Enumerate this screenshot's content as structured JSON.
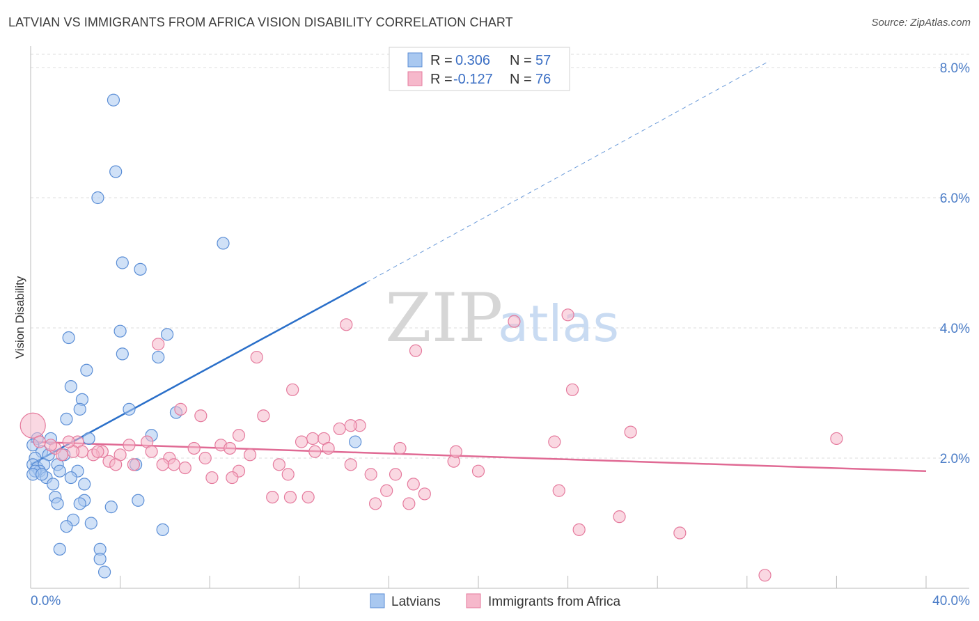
{
  "title": "LATVIAN VS IMMIGRANTS FROM AFRICA VISION DISABILITY CORRELATION CHART",
  "source": "Source: ZipAtlas.com",
  "watermark": {
    "zip": "ZIP",
    "atlas": "atlas"
  },
  "colors": {
    "latvian_fill": "#a9c8f0",
    "latvian_stroke": "#5b8ed6",
    "latvian_line": "#2a6fc9",
    "africa_fill": "#f6b8cb",
    "africa_stroke": "#e57a9d",
    "africa_line": "#e06a94",
    "grid": "#dddddd",
    "tick_text": "#4a7cc7"
  },
  "legend": {
    "rows": [
      {
        "r_label": "R = ",
        "r_value": "0.306",
        "n_label": "N = ",
        "n_value": "57"
      },
      {
        "r_label": "R = ",
        "r_value": "-0.127",
        "n_label": "N = ",
        "n_value": "76"
      }
    ]
  },
  "chart_data": {
    "type": "scatter",
    "title": "LATVIAN VS IMMIGRANTS FROM AFRICA VISION DISABILITY CORRELATION CHART",
    "xlabel": "",
    "ylabel": "Vision Disability",
    "xlim": [
      0,
      40
    ],
    "ylim": [
      0,
      8
    ],
    "x_tick_labels": [
      "0.0%",
      "40.0%"
    ],
    "y_ticks": [
      2,
      4,
      6,
      8
    ],
    "y_tick_labels": [
      "2.0%",
      "4.0%",
      "6.0%",
      "8.0%"
    ],
    "grid": true,
    "series": [
      {
        "name": "Latvians",
        "r": 0.306,
        "n": 57,
        "trend": {
          "x0": 0,
          "y0": 1.9,
          "x1": 15,
          "y1": 4.7,
          "dashed_to_x": 33,
          "dashed_to_y": 8.1
        },
        "points": [
          [
            3.7,
            7.5
          ],
          [
            3.8,
            6.4
          ],
          [
            3.0,
            6.0
          ],
          [
            8.6,
            5.3
          ],
          [
            4.1,
            5.0
          ],
          [
            4.9,
            4.9
          ],
          [
            4.0,
            3.95
          ],
          [
            6.1,
            3.9
          ],
          [
            1.7,
            3.85
          ],
          [
            4.1,
            3.6
          ],
          [
            5.7,
            3.55
          ],
          [
            2.5,
            3.35
          ],
          [
            1.8,
            3.1
          ],
          [
            2.3,
            2.9
          ],
          [
            2.2,
            2.75
          ],
          [
            4.4,
            2.75
          ],
          [
            6.5,
            2.7
          ],
          [
            1.6,
            2.6
          ],
          [
            2.6,
            2.3
          ],
          [
            5.4,
            2.35
          ],
          [
            0.9,
            2.3
          ],
          [
            0.3,
            2.3
          ],
          [
            0.1,
            2.2
          ],
          [
            14.5,
            2.25
          ],
          [
            1.5,
            2.05
          ],
          [
            0.5,
            2.1
          ],
          [
            0.8,
            2.05
          ],
          [
            0.2,
            2.0
          ],
          [
            0.1,
            1.9
          ],
          [
            0.3,
            1.85
          ],
          [
            0.6,
            1.9
          ],
          [
            1.2,
            1.9
          ],
          [
            4.7,
            1.9
          ],
          [
            0.4,
            1.8
          ],
          [
            0.2,
            1.8
          ],
          [
            0.1,
            1.75
          ],
          [
            2.1,
            1.8
          ],
          [
            1.3,
            1.8
          ],
          [
            0.7,
            1.7
          ],
          [
            1.8,
            1.7
          ],
          [
            1.0,
            1.6
          ],
          [
            2.4,
            1.6
          ],
          [
            1.1,
            1.4
          ],
          [
            2.4,
            1.35
          ],
          [
            4.8,
            1.35
          ],
          [
            1.2,
            1.3
          ],
          [
            2.2,
            1.3
          ],
          [
            3.6,
            1.25
          ],
          [
            1.9,
            1.05
          ],
          [
            2.7,
            1.0
          ],
          [
            1.6,
            0.95
          ],
          [
            5.9,
            0.9
          ],
          [
            1.3,
            0.6
          ],
          [
            3.1,
            0.6
          ],
          [
            3.1,
            0.45
          ],
          [
            3.3,
            0.25
          ],
          [
            0.5,
            1.75
          ]
        ]
      },
      {
        "name": "Immigrants from Africa",
        "r": -0.127,
        "n": 76,
        "trend": {
          "x0": 0,
          "y0": 2.25,
          "x1": 40,
          "y1": 1.8
        },
        "points": [
          [
            24.0,
            4.2
          ],
          [
            21.6,
            4.1
          ],
          [
            14.1,
            4.05
          ],
          [
            5.7,
            3.75
          ],
          [
            17.2,
            3.65
          ],
          [
            10.1,
            3.55
          ],
          [
            11.7,
            3.05
          ],
          [
            24.2,
            3.05
          ],
          [
            6.7,
            2.75
          ],
          [
            7.6,
            2.65
          ],
          [
            10.4,
            2.65
          ],
          [
            14.7,
            2.5
          ],
          [
            14.3,
            2.5
          ],
          [
            13.8,
            2.45
          ],
          [
            26.8,
            2.4
          ],
          [
            9.3,
            2.35
          ],
          [
            12.6,
            2.3
          ],
          [
            13.1,
            2.3
          ],
          [
            12.1,
            2.25
          ],
          [
            36.0,
            2.3
          ],
          [
            23.4,
            2.25
          ],
          [
            0.1,
            2.5
          ],
          [
            0.4,
            2.25
          ],
          [
            2.1,
            2.25
          ],
          [
            5.2,
            2.25
          ],
          [
            8.5,
            2.2
          ],
          [
            4.4,
            2.2
          ],
          [
            7.3,
            2.15
          ],
          [
            16.5,
            2.15
          ],
          [
            1.1,
            2.15
          ],
          [
            2.3,
            2.1
          ],
          [
            3.2,
            2.1
          ],
          [
            12.7,
            2.1
          ],
          [
            9.8,
            2.05
          ],
          [
            4.0,
            2.05
          ],
          [
            5.4,
            2.1
          ],
          [
            6.2,
            2.0
          ],
          [
            7.8,
            2.0
          ],
          [
            1.4,
            2.05
          ],
          [
            1.9,
            2.1
          ],
          [
            18.9,
            1.95
          ],
          [
            3.5,
            1.95
          ],
          [
            6.4,
            1.9
          ],
          [
            11.1,
            1.9
          ],
          [
            14.3,
            1.9
          ],
          [
            3.8,
            1.9
          ],
          [
            5.9,
            1.9
          ],
          [
            6.9,
            1.85
          ],
          [
            9.3,
            1.8
          ],
          [
            20.0,
            1.8
          ],
          [
            11.5,
            1.75
          ],
          [
            15.2,
            1.75
          ],
          [
            16.3,
            1.75
          ],
          [
            8.1,
            1.7
          ],
          [
            9.0,
            1.7
          ],
          [
            17.1,
            1.6
          ],
          [
            15.9,
            1.5
          ],
          [
            17.6,
            1.45
          ],
          [
            23.6,
            1.5
          ],
          [
            10.8,
            1.4
          ],
          [
            11.6,
            1.4
          ],
          [
            12.4,
            1.4
          ],
          [
            15.4,
            1.3
          ],
          [
            16.9,
            1.3
          ],
          [
            26.3,
            1.1
          ],
          [
            24.5,
            0.9
          ],
          [
            29.0,
            0.85
          ],
          [
            32.8,
            0.2
          ],
          [
            2.8,
            2.05
          ],
          [
            3.0,
            2.1
          ],
          [
            1.7,
            2.25
          ],
          [
            0.9,
            2.2
          ],
          [
            4.6,
            1.9
          ],
          [
            13.3,
            2.15
          ],
          [
            8.9,
            2.15
          ],
          [
            19.0,
            2.1
          ]
        ]
      }
    ],
    "bottom_legend": [
      "Latvians",
      "Immigrants from Africa"
    ]
  }
}
